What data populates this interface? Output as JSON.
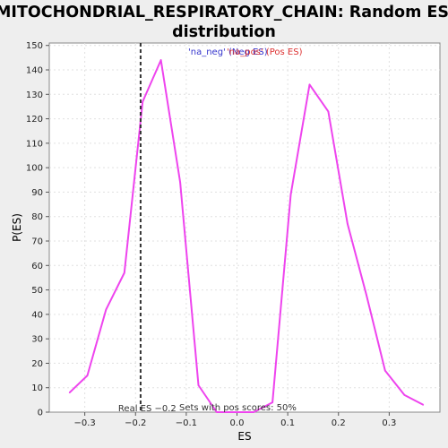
{
  "chart_data": {
    "type": "line",
    "title_line1": "MITOCHONDRIAL_RESPIRATORY_CHAIN: Random ES",
    "title_line2": "distribution",
    "xlabel": "ES",
    "ylabel": "P(ES)",
    "xlim": [
      -0.37,
      0.4
    ],
    "ylim": [
      0,
      151
    ],
    "x_ticks": [
      -0.3,
      -0.2,
      -0.1,
      0.0,
      0.1,
      0.2,
      0.3
    ],
    "x_tick_labels": [
      "−0.3",
      "−0.2",
      "−0.1",
      "0.0",
      "0.1",
      "0.2",
      "0.3"
    ],
    "y_ticks": [
      0,
      10,
      20,
      30,
      40,
      50,
      60,
      70,
      80,
      90,
      100,
      110,
      120,
      130,
      140,
      150
    ],
    "y_tick_labels": [
      "0",
      "10",
      "20",
      "30",
      "40",
      "50",
      "60",
      "70",
      "80",
      "90",
      "100",
      "110",
      "120",
      "130",
      "140",
      "150"
    ],
    "grid": true,
    "series_color": "#ee44ee",
    "series": [
      {
        "name": "",
        "x": [
          -0.33,
          -0.295,
          -0.258,
          -0.222,
          -0.186,
          -0.15,
          -0.112,
          -0.076,
          -0.04,
          -0.003,
          0.033,
          0.07,
          0.106,
          0.143,
          0.18,
          0.218,
          0.255,
          0.292,
          0.33,
          0.367
        ],
        "y": [
          8,
          15,
          42,
          57,
          127,
          144,
          94,
          11,
          0,
          0,
          0,
          4,
          89,
          134,
          123,
          77,
          48,
          17,
          7,
          3
        ]
      }
    ],
    "real_es": -0.19,
    "real_es_label": "Real ES −0.2",
    "sets_label": "Sets with pos scores: 50%",
    "legend": {
      "neg_label": "'na_neg' (Neg ES)",
      "neg_color": "#3333cc",
      "pos_label": "'na_pos' (Pos ES)",
      "pos_color": "#dd3333"
    }
  }
}
